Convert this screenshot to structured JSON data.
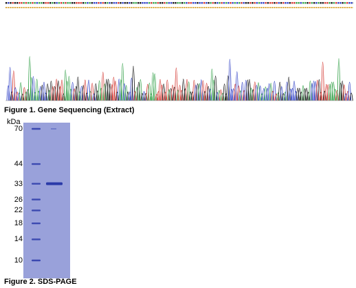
{
  "figure1": {
    "caption": "Figure 1. Gene Sequencing (Extract)",
    "colors": {
      "A": "#2e9e44",
      "C": "#2b3cc4",
      "G": "#111111",
      "T": "#d2302a"
    }
  },
  "figure2": {
    "caption": "Figure 2. SDS-PAGE",
    "unit_label": "kDa",
    "markers": [
      {
        "label": "70",
        "kda": 70
      },
      {
        "label": "44",
        "kda": 44
      },
      {
        "label": "33",
        "kda": 33
      },
      {
        "label": "26",
        "kda": 26
      },
      {
        "label": "22",
        "kda": 22
      },
      {
        "label": "18",
        "kda": 18
      },
      {
        "label": "14",
        "kda": 14
      },
      {
        "label": "10",
        "kda": 10
      }
    ],
    "sample_band_kda": 33,
    "gel_color": "#8f98d6",
    "band_color": "#2a3aa8"
  }
}
